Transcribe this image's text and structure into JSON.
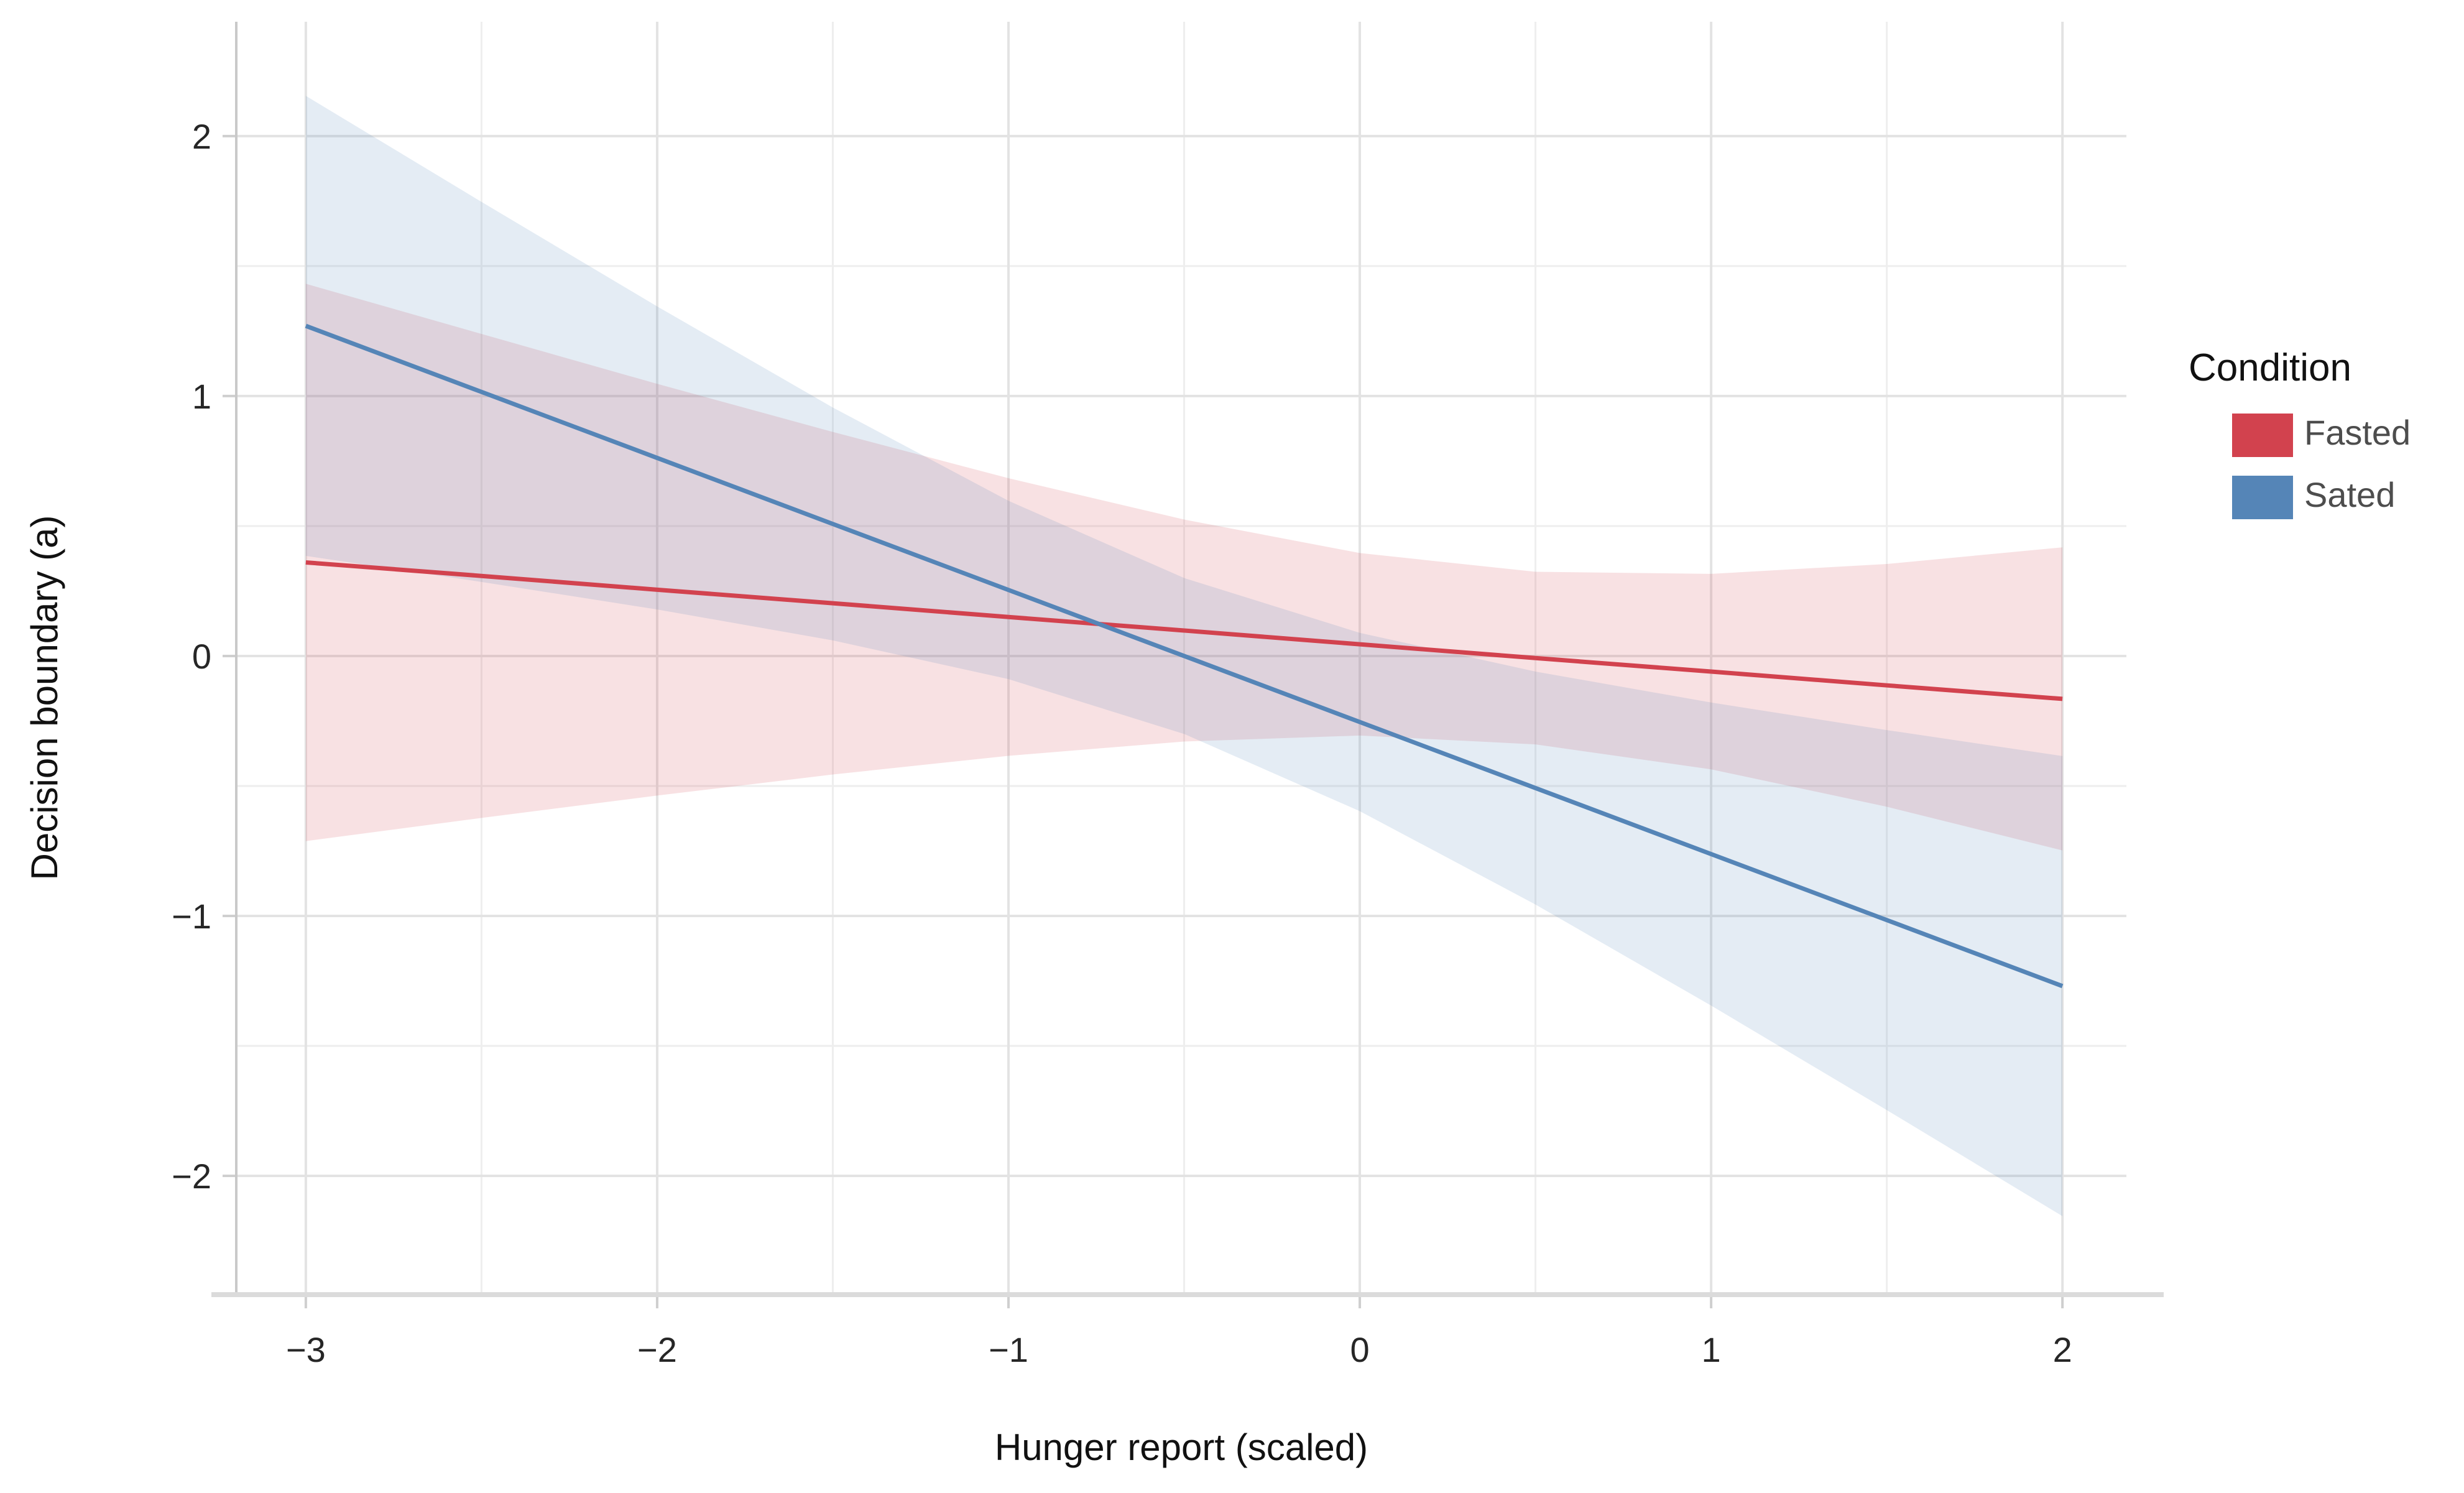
{
  "chart_data": {
    "type": "line",
    "xlabel": "Hunger report (scaled)",
    "ylabel": "Decision boundary (a)",
    "xlim": [
      -3.198,
      2.182
    ],
    "ylim": [
      -2.457,
      2.44
    ],
    "grid": {
      "x_major": [
        -3,
        -2,
        -1,
        0,
        1,
        2
      ],
      "x_minor": [
        -2.5,
        -1.5,
        -0.5,
        0.5,
        1.5
      ],
      "y_major": [
        -2,
        -1,
        0,
        1,
        2
      ],
      "y_minor": [
        -1.5,
        -0.5,
        0.5,
        1.5
      ]
    },
    "xticks": [
      {
        "value": -3,
        "label": "−3"
      },
      {
        "value": -2,
        "label": "−2"
      },
      {
        "value": -1,
        "label": "−1"
      },
      {
        "value": 0,
        "label": "0"
      },
      {
        "value": 1,
        "label": "1"
      },
      {
        "value": 2,
        "label": "2"
      }
    ],
    "yticks": [
      {
        "value": 2,
        "label": "2"
      },
      {
        "value": 1,
        "label": "1"
      },
      {
        "value": 0,
        "label": "0"
      },
      {
        "value": -1,
        "label": "−1"
      },
      {
        "value": -2,
        "label": "−2"
      }
    ],
    "x": [
      -3,
      -2.5,
      -2,
      -1.5,
      -1,
      -0.5,
      0,
      0.5,
      1,
      1.5,
      2
    ],
    "series": [
      {
        "name": "Fasted",
        "color": "#D2424E",
        "y": [
          0.36,
          0.308,
          0.255,
          0.203,
          0.15,
          0.098,
          0.045,
          -0.008,
          -0.06,
          -0.113,
          -0.165
        ],
        "ci_upper": [
          1.432,
          1.239,
          1.047,
          0.862,
          0.684,
          0.525,
          0.396,
          0.324,
          0.316,
          0.354,
          0.418
        ],
        "ci_lower": [
          -0.712,
          -0.623,
          -0.537,
          -0.456,
          -0.384,
          -0.329,
          -0.306,
          -0.34,
          -0.436,
          -0.58,
          -0.748
        ]
      },
      {
        "name": "Sated",
        "color": "#5585B7",
        "y": [
          1.27,
          1.016,
          0.762,
          0.508,
          0.254,
          0.0,
          -0.254,
          -0.508,
          -0.762,
          -1.016,
          -1.27
        ],
        "ci_upper": [
          2.155,
          1.747,
          1.345,
          0.956,
          0.597,
          0.3,
          0.089,
          -0.06,
          -0.179,
          -0.285,
          -0.385
        ],
        "ci_lower": [
          0.385,
          0.285,
          0.179,
          0.06,
          -0.089,
          -0.3,
          -0.597,
          -0.956,
          -1.345,
          -1.747,
          -2.155
        ]
      }
    ],
    "ci_opacity": 0.155,
    "legend": {
      "title": "Condition",
      "position": "right",
      "items": [
        "Fasted",
        "Sated"
      ]
    }
  }
}
